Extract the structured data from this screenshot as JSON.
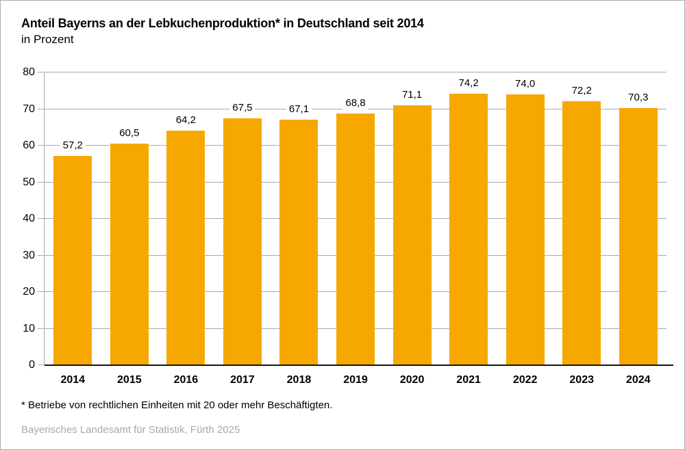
{
  "header": {
    "title": "Anteil Bayerns an der Lebkuchenproduktion* in Deutschland seit 2014",
    "subtitle": "in Prozent"
  },
  "footnote": "* Betriebe von rechtlichen Einheiten mit 20 oder mehr Beschäftigten.",
  "source": "Bayerisches Landesamt für Statistik, Fürth 2025",
  "colors": {
    "bar": "#F6A800",
    "grid": "#A9A9A9",
    "axis_line": "#141414",
    "source_text": "#A8A8A8",
    "frame_border": "#ACACAC"
  },
  "chart_data": {
    "type": "bar",
    "title": "Anteil Bayerns an der Lebkuchenproduktion* in Deutschland seit 2014",
    "unit_label": "in Prozent",
    "categories": [
      "2014",
      "2015",
      "2016",
      "2017",
      "2018",
      "2019",
      "2020",
      "2021",
      "2022",
      "2023",
      "2024"
    ],
    "values": [
      57.2,
      60.5,
      64.2,
      67.5,
      67.1,
      68.8,
      71.1,
      74.2,
      74.0,
      72.2,
      70.3
    ],
    "value_labels": [
      "57,2",
      "60,5",
      "64,2",
      "67,5",
      "67,1",
      "68,8",
      "71,1",
      "74,2",
      "74,0",
      "72,2",
      "70,3"
    ],
    "ylim": [
      0,
      80
    ],
    "ytick_step": 10,
    "ytick_labels": [
      "0",
      "10",
      "20",
      "30",
      "40",
      "50",
      "60",
      "70",
      "80"
    ],
    "grid": true,
    "legend": false
  }
}
